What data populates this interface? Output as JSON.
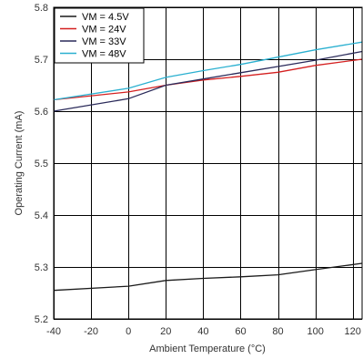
{
  "chart_data": {
    "type": "line",
    "xlabel": "Ambient Temperature (°C)",
    "ylabel": "Operating Current (mA)",
    "xlim": [
      -40,
      125
    ],
    "ylim": [
      5.2,
      5.8
    ],
    "xticks": [
      -40,
      -20,
      0,
      20,
      40,
      60,
      80,
      100,
      120
    ],
    "yticks": [
      5.2,
      5.3,
      5.4,
      5.5,
      5.6,
      5.7,
      5.8
    ],
    "xtick_labels": [
      "-40",
      "-20",
      "0",
      "20",
      "40",
      "60",
      "80",
      "100",
      "120"
    ],
    "ytick_labels": [
      "5.2",
      "5.3",
      "5.4",
      "5.5",
      "5.6",
      "5.7",
      "5.8"
    ],
    "grid": true,
    "legend_position": "top-left",
    "series": [
      {
        "name": "VM = 4.5V",
        "color": "#1a1a1a",
        "x": [
          -40,
          0,
          20,
          40,
          60,
          80,
          100,
          125
        ],
        "y": [
          5.255,
          5.263,
          5.274,
          5.278,
          5.281,
          5.285,
          5.295,
          5.307
        ]
      },
      {
        "name": "VM = 24V",
        "color": "#d42020",
        "x": [
          -40,
          0,
          20,
          40,
          60,
          80,
          100,
          125
        ],
        "y": [
          5.622,
          5.637,
          5.65,
          5.66,
          5.667,
          5.675,
          5.688,
          5.7
        ]
      },
      {
        "name": "VM = 33V",
        "color": "#2a2a5a",
        "x": [
          -40,
          0,
          20,
          40,
          60,
          80,
          100,
          125
        ],
        "y": [
          5.6,
          5.624,
          5.65,
          5.662,
          5.674,
          5.686,
          5.698,
          5.715
        ]
      },
      {
        "name": "VM = 48V",
        "color": "#2ab0d0",
        "x": [
          -40,
          0,
          20,
          40,
          60,
          80,
          100,
          125
        ],
        "y": [
          5.622,
          5.644,
          5.665,
          5.678,
          5.69,
          5.704,
          5.718,
          5.733
        ]
      }
    ]
  }
}
